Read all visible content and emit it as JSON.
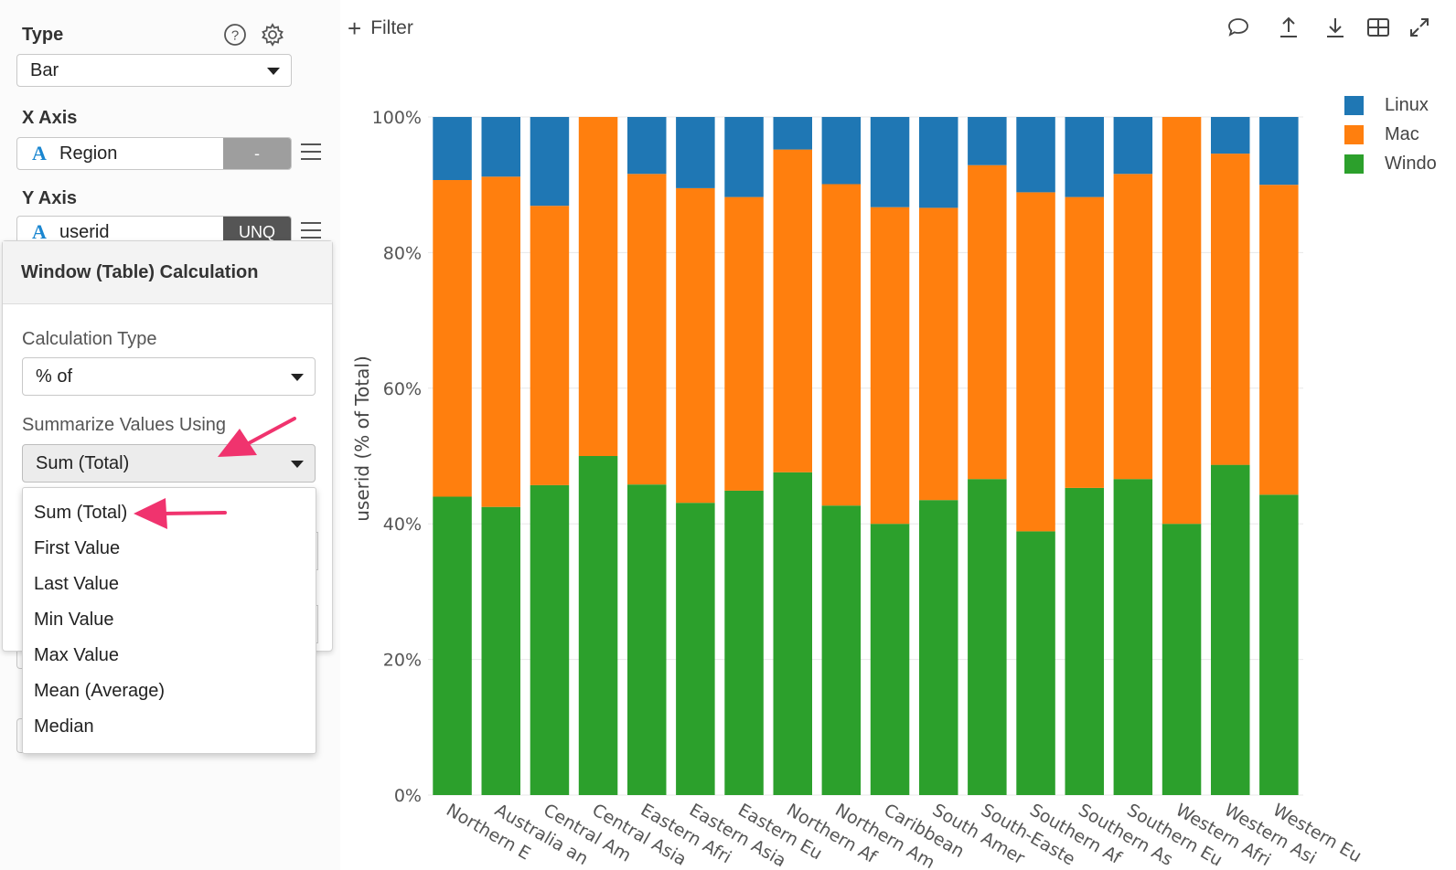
{
  "sidebar": {
    "type_label": "Type",
    "type_value": "Bar",
    "x_axis_label": "X Axis",
    "x_field": "Region",
    "x_field_type": "A",
    "x_agg": "-",
    "y_axis_label": "Y Axis",
    "y_field": "userid",
    "y_field_type": "A",
    "y_agg": "UNQ",
    "icons": [
      "help-icon",
      "gear-icon",
      "hamburger-icon"
    ]
  },
  "popup": {
    "title": "Window (Table) Calculation",
    "calc_type_label": "Calculation Type",
    "calc_type_value": "% of",
    "summarize_label": "Summarize Values Using",
    "summarize_value": "Sum (Total)",
    "options": [
      "Sum (Total)",
      "First Value",
      "Last Value",
      "Min Value",
      "Max Value",
      "Mean (Average)",
      "Median"
    ]
  },
  "toolbar": {
    "filter_label": "Filter",
    "icons": [
      "comment-icon",
      "upload-icon",
      "download-icon",
      "table-icon",
      "expand-icon"
    ]
  },
  "colors": {
    "linux": "#1f77b4",
    "mac": "#ff7f0e",
    "windows": "#2ca02c",
    "annotation_arrow": "#f0336e",
    "agg_x": "#9e9e9e",
    "agg_y": "#555555"
  },
  "chart_data": {
    "type": "bar",
    "stacked": true,
    "ylabel": "userid (% of Total)",
    "ylim": [
      0,
      100
    ],
    "yticks": [
      "0%",
      "20%",
      "40%",
      "60%",
      "80%",
      "100%"
    ],
    "grid": true,
    "legend_position": "top-right",
    "legend": [
      "Linux",
      "Mac",
      "Windo"
    ],
    "categories": [
      "Northern E",
      "Australia an",
      "Central Am",
      "Central Asia",
      "Eastern Afri",
      "Eastern Asia",
      "Eastern Eu",
      "Northern Af",
      "Northern Am",
      "Caribbean",
      "South Amer",
      "South-Easte",
      "Southern Af",
      "Southern As",
      "Southern Eu",
      "Western Afri",
      "Western Asi",
      "Western Eu"
    ],
    "series": [
      {
        "name": "Windo",
        "values": [
          44,
          42.5,
          45.7,
          50,
          45.8,
          43.1,
          44.9,
          47.6,
          42.7,
          40,
          43.5,
          46.6,
          38.9,
          45.3,
          46.6,
          40,
          48.7,
          44.3
        ]
      },
      {
        "name": "Mac",
        "values": [
          46.7,
          48.7,
          41.2,
          50,
          45.8,
          46.4,
          43.3,
          47.6,
          47.4,
          46.7,
          43.1,
          46.3,
          50,
          42.9,
          45,
          60,
          45.9,
          45.7
        ]
      },
      {
        "name": "Linux",
        "values": [
          9.3,
          8.8,
          13.1,
          0,
          8.4,
          10.5,
          11.8,
          4.8,
          9.9,
          13.3,
          13.4,
          7.1,
          11.1,
          11.8,
          8.4,
          0,
          5.4,
          10
        ]
      }
    ]
  }
}
